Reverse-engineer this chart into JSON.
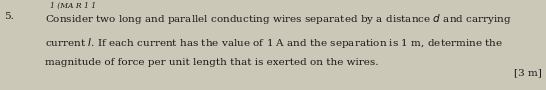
{
  "question_number": "5.",
  "line1": "Consider two long and parallel conducting wires separated by a distance $d$ and carrying",
  "line2": "current $I$. If each current has the value of 1 A and the separation is 1 m, determine the",
  "line3": "magnitude of force per unit length that is exerted on the wires.",
  "marks": "[3 m]",
  "top_fragment": "1 (MA R 1 1",
  "bg_color": "#ccc8b8",
  "text_color": "#1a1a1a",
  "fontsize": 7.5,
  "marks_fontsize": 7.5,
  "fig_width": 5.46,
  "fig_height": 0.9,
  "dpi": 100
}
